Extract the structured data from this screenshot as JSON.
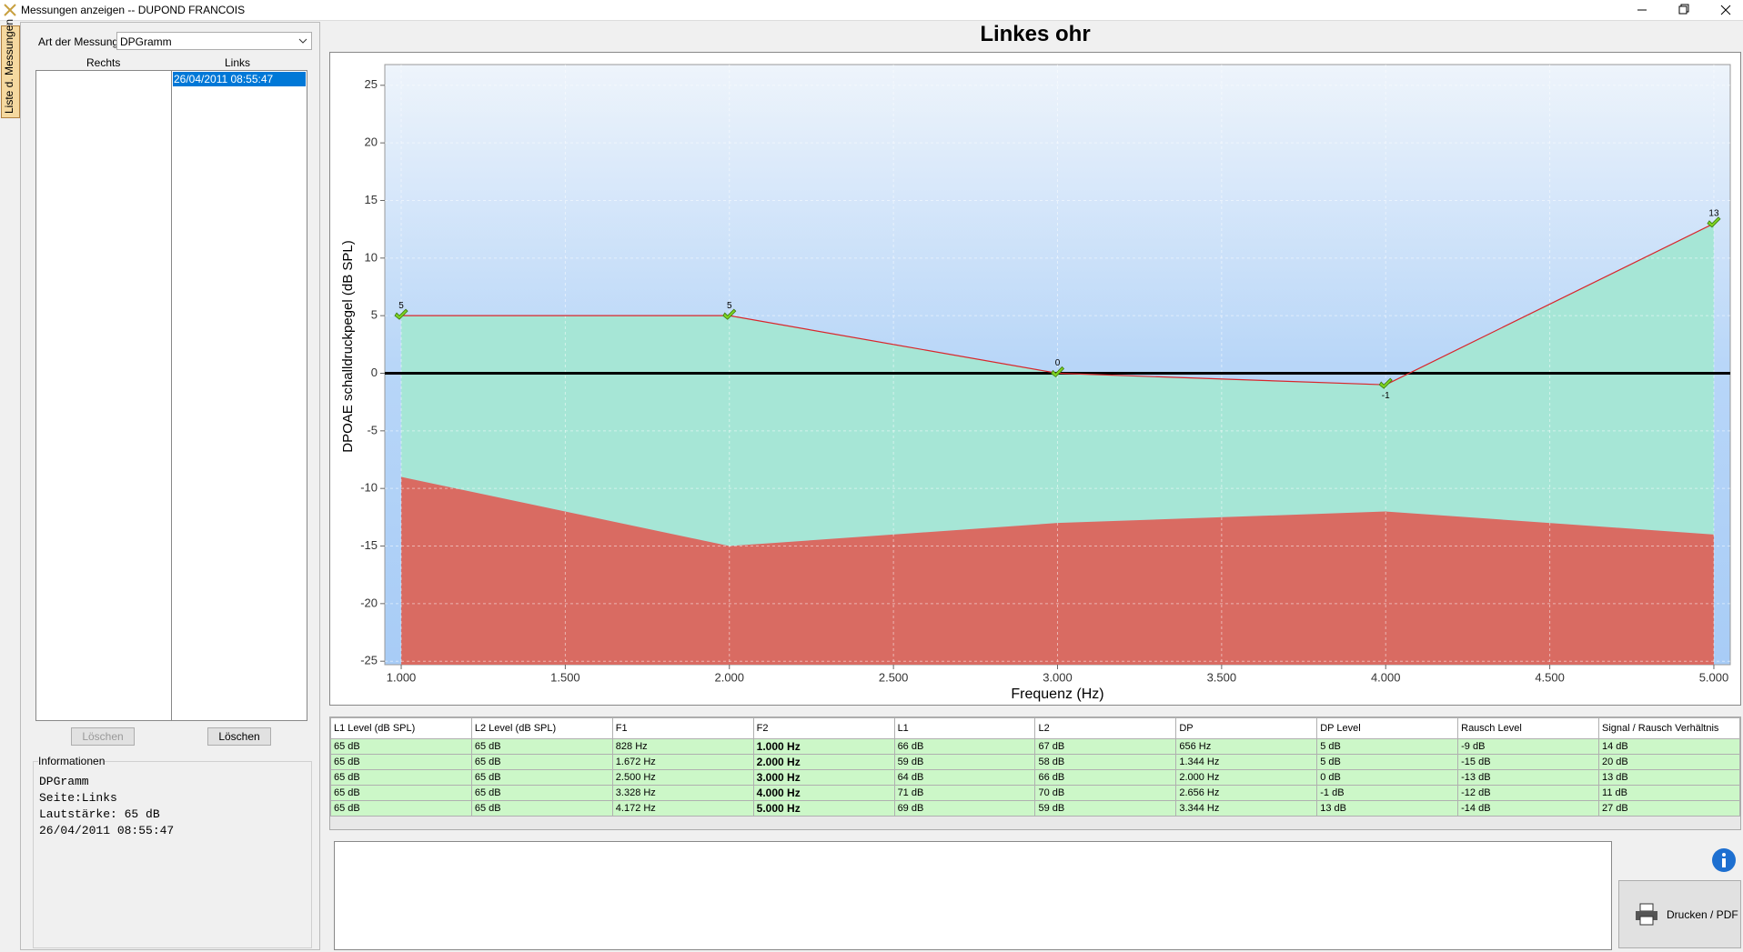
{
  "window": {
    "title": "Messungen anzeigen -- DUPOND FRANCOIS"
  },
  "side_tab": "Liste d. Messungen",
  "measurement": {
    "label": "Art der Messung",
    "value": "DPGramm"
  },
  "lists": {
    "right": {
      "header": "Rechts"
    },
    "left": {
      "header": "Links",
      "items": [
        "26/04/2011 08:55:47"
      ]
    }
  },
  "buttons": {
    "delete_right": "Löschen",
    "delete_left": "Löschen",
    "print": "Drucken / PDF"
  },
  "info": {
    "title": "Informationen",
    "lines": [
      "DPGramm",
      "Seite:Links",
      "Lautstärke: 65 dB",
      "26/04/2011 08:55:47"
    ]
  },
  "chart_data": {
    "type": "line",
    "title": "Linkes ohr",
    "x_label": "Frequenz (Hz)",
    "y_label": "DPOAE schalldruckpegel (dB SPL)",
    "x": [
      1000,
      2000,
      3000,
      4000,
      5000
    ],
    "series": [
      {
        "color": "#d9262b",
        "fill_color": "#a6e6d6",
        "values": [
          5,
          5,
          0,
          -1,
          13
        ]
      },
      {
        "color": "#d96b62",
        "values": [
          -9,
          -15,
          -13,
          -12,
          -14
        ]
      }
    ],
    "xlim": [
      950,
      5050
    ],
    "ylim": [
      -25.3,
      26.8
    ],
    "xticks": [
      {
        "value": 1000,
        "label": "1.000"
      },
      {
        "value": 1500,
        "label": "1.500"
      },
      {
        "value": 2000,
        "label": "2.000"
      },
      {
        "value": 2500,
        "label": "2.500"
      },
      {
        "value": 3000,
        "label": "3.000"
      },
      {
        "value": 3500,
        "label": "3.500"
      },
      {
        "value": 4000,
        "label": "4.000"
      },
      {
        "value": 4500,
        "label": "4.500"
      },
      {
        "value": 5000,
        "label": "5.000"
      }
    ],
    "yticks": [
      -25,
      -20,
      -15,
      -10,
      -5,
      0,
      5,
      10,
      15,
      20,
      25
    ],
    "grid": true,
    "zero_line": true
  },
  "table": {
    "headers": [
      "L1 Level (dB SPL)",
      "L2 Level (dB SPL)",
      "F1",
      "F2",
      "L1",
      "L2",
      "DP",
      "DP Level",
      "Rausch Level",
      "Signal / Rausch Verhältnis"
    ],
    "rows": [
      [
        "65 dB",
        "65 dB",
        "828 Hz",
        "1.000 Hz",
        "66 dB",
        "67 dB",
        "656 Hz",
        "5 dB",
        "-9 dB",
        "14 dB"
      ],
      [
        "65 dB",
        "65 dB",
        "1.672 Hz",
        "2.000 Hz",
        "59 dB",
        "58 dB",
        "1.344 Hz",
        "5 dB",
        "-15 dB",
        "20 dB"
      ],
      [
        "65 dB",
        "65 dB",
        "2.500 Hz",
        "3.000 Hz",
        "64 dB",
        "66 dB",
        "2.000 Hz",
        "0 dB",
        "-13 dB",
        "13 dB"
      ],
      [
        "65 dB",
        "65 dB",
        "3.328 Hz",
        "4.000 Hz",
        "71 dB",
        "70 dB",
        "2.656 Hz",
        "-1 dB",
        "-12 dB",
        "11 dB"
      ],
      [
        "65 dB",
        "65 dB",
        "4.172 Hz",
        "5.000 Hz",
        "69 dB",
        "59 dB",
        "3.344 Hz",
        "13 dB",
        "-14 dB",
        "27 dB"
      ]
    ]
  }
}
